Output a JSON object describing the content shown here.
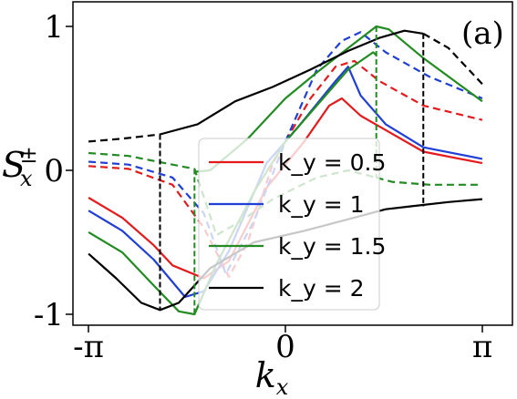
{
  "chart_data": {
    "type": "line",
    "panel_label": "(a)",
    "xlabel": "k_x",
    "ylabel": "S_x^±",
    "xlim": [
      -3.2,
      3.2
    ],
    "ylim": [
      -1.03,
      1.05
    ],
    "x_ticks": [
      {
        "value": -3.14159,
        "label": "-π"
      },
      {
        "value": 0,
        "label": "0"
      },
      {
        "value": 3.14159,
        "label": "π"
      }
    ],
    "y_ticks": [
      {
        "value": -1,
        "label": "-1"
      },
      {
        "value": 0,
        "label": "0"
      },
      {
        "value": 1,
        "label": "1"
      }
    ],
    "legend": {
      "position": "center-left",
      "entries": [
        "k_y = 0.5",
        "k_y = 1",
        "k_y = 1.5",
        "k_y = 2"
      ]
    },
    "series": [
      {
        "name": "k_y = 0.5",
        "color": "#e41a1c",
        "solid_lower": [
          [
            -3.14,
            -0.19
          ],
          [
            -2.6,
            -0.33
          ],
          [
            -2.1,
            -0.52
          ],
          [
            -1.8,
            -0.66
          ],
          [
            -1.3,
            -0.75
          ],
          [
            -0.9,
            -0.63
          ],
          [
            -0.3,
            -0.12
          ],
          [
            0.3,
            0.2
          ],
          [
            0.7,
            0.45
          ],
          [
            0.9,
            0.5
          ],
          [
            1.2,
            0.38
          ],
          [
            1.6,
            0.28
          ],
          [
            2.2,
            0.13
          ],
          [
            3.14,
            0.05
          ]
        ],
        "dashed_upper": [
          [
            -3.14,
            0.03
          ],
          [
            -2.5,
            0.01
          ],
          [
            -1.8,
            -0.1
          ],
          [
            -1.3,
            -0.4
          ],
          [
            -0.9,
            -0.74
          ],
          [
            -0.6,
            -0.5
          ],
          [
            -0.2,
            0.05
          ],
          [
            0.4,
            0.5
          ],
          [
            0.8,
            0.72
          ],
          [
            1.1,
            0.76
          ],
          [
            1.5,
            0.62
          ],
          [
            2.2,
            0.45
          ],
          [
            3.14,
            0.35
          ]
        ]
      },
      {
        "name": "k_y = 1",
        "color": "#1f3fd6",
        "solid_lower": [
          [
            -3.14,
            -0.28
          ],
          [
            -2.6,
            -0.42
          ],
          [
            -2.1,
            -0.62
          ],
          [
            -1.6,
            -0.88
          ],
          [
            -1.3,
            -0.84
          ],
          [
            -0.9,
            -0.56
          ],
          [
            -0.3,
            0.05
          ],
          [
            0.2,
            0.3
          ],
          [
            0.8,
            0.62
          ],
          [
            1.0,
            0.72
          ],
          [
            1.2,
            0.52
          ],
          [
            1.6,
            0.32
          ],
          [
            2.2,
            0.16
          ],
          [
            3.14,
            0.08
          ]
        ],
        "dashed_upper": [
          [
            -3.14,
            0.06
          ],
          [
            -2.5,
            0.04
          ],
          [
            -1.8,
            -0.05
          ],
          [
            -1.3,
            -0.3
          ],
          [
            -0.95,
            -0.72
          ],
          [
            -0.5,
            -0.35
          ],
          [
            0,
            0.2
          ],
          [
            0.5,
            0.7
          ],
          [
            0.9,
            0.9
          ],
          [
            1.2,
            0.96
          ],
          [
            1.6,
            0.82
          ],
          [
            2.3,
            0.65
          ],
          [
            3.14,
            0.5
          ]
        ]
      },
      {
        "name": "k_y = 1.5",
        "color": "#228b22",
        "solid_lower": [
          [
            -3.14,
            -0.43
          ],
          [
            -2.6,
            -0.57
          ],
          [
            -2.1,
            -0.8
          ],
          [
            -1.7,
            -0.98
          ],
          [
            -1.45,
            -1.0
          ],
          [
            -1.1,
            -0.65
          ],
          [
            -0.5,
            -0.15
          ],
          [
            0,
            0.2
          ],
          [
            0.5,
            0.45
          ],
          [
            1.0,
            0.7
          ],
          [
            1.4,
            0.82
          ],
          [
            1.45,
            0.8
          ]
        ],
        "solid_upper": [
          [
            -1.45,
            -0.01
          ],
          [
            -1.2,
            0.0
          ],
          [
            -0.6,
            0.22
          ],
          [
            0,
            0.5
          ],
          [
            0.5,
            0.68
          ],
          [
            1.0,
            0.85
          ],
          [
            1.45,
            1.0
          ],
          [
            1.65,
            0.98
          ],
          [
            2.2,
            0.78
          ],
          [
            3.14,
            0.48
          ]
        ],
        "dashed_lower": [
          [
            -3.14,
            0.12
          ],
          [
            -2.5,
            0.1
          ],
          [
            -1.8,
            0.04
          ],
          [
            -1.45,
            0.01
          ],
          [
            -1.1,
            -0.45
          ],
          [
            -0.7,
            -0.35
          ],
          [
            -0.2,
            -0.2
          ],
          [
            0.5,
            -0.05
          ],
          [
            1.0,
            0.0
          ],
          [
            1.45,
            -0.05
          ]
        ],
        "dashed_upper": [
          [
            1.45,
            -0.05
          ],
          [
            1.7,
            -0.08
          ],
          [
            2.3,
            -0.1
          ],
          [
            3.14,
            -0.1
          ]
        ]
      },
      {
        "name": "k_y = 2",
        "color": "#000000",
        "solid_lower": [
          [
            -3.14,
            -0.58
          ],
          [
            -2.7,
            -0.75
          ],
          [
            -2.3,
            -0.92
          ],
          [
            -2.0,
            -0.97
          ],
          [
            -1.7,
            -0.92
          ],
          [
            -1.2,
            -0.68
          ],
          [
            -0.5,
            -0.5
          ],
          [
            0.3,
            -0.42
          ],
          [
            1.0,
            -0.34
          ],
          [
            1.6,
            -0.27
          ],
          [
            2.0,
            -0.25
          ],
          [
            2.6,
            -0.22
          ],
          [
            3.14,
            -0.2
          ]
        ],
        "solid_upper": [
          [
            -2.0,
            0.25
          ],
          [
            -1.4,
            0.32
          ],
          [
            -0.8,
            0.48
          ],
          [
            -0.2,
            0.58
          ],
          [
            0.4,
            0.7
          ],
          [
            1.0,
            0.83
          ],
          [
            1.5,
            0.92
          ],
          [
            1.9,
            0.97
          ],
          [
            2.2,
            0.95
          ]
        ],
        "dashed_lower": [
          [
            -3.14,
            0.2
          ],
          [
            -2.6,
            0.22
          ],
          [
            -2.0,
            0.25
          ]
        ],
        "dashed_upper": [
          [
            2.2,
            0.95
          ],
          [
            2.6,
            0.85
          ],
          [
            3.14,
            0.6
          ]
        ]
      }
    ]
  }
}
